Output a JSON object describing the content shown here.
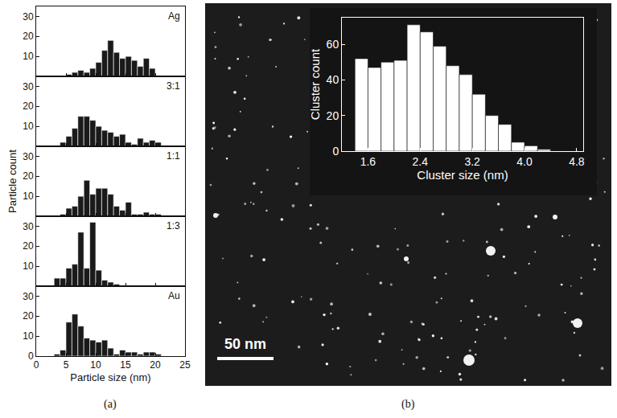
{
  "chart_data": [
    {
      "type": "histogram",
      "title": "Ag",
      "color": "#1a1a1a",
      "bins": [
        5,
        6,
        7,
        8,
        9,
        10,
        11,
        12,
        13,
        14,
        15,
        16,
        17,
        18,
        19,
        20
      ],
      "values": [
        1,
        2,
        3,
        2,
        4,
        7,
        13,
        18,
        12,
        9,
        10,
        8,
        5,
        9,
        4
      ],
      "xlim": [
        0,
        25
      ],
      "xticks": [
        0,
        5,
        10,
        15,
        20,
        25
      ],
      "ylim": [
        0,
        35
      ],
      "yticks": [
        10,
        20,
        30
      ],
      "grid": false,
      "tick_labels": "y"
    },
    {
      "type": "histogram",
      "title": "3:1",
      "color": "#1a1a1a",
      "bins": [
        4,
        5,
        6,
        7,
        8,
        9,
        10,
        11,
        12,
        13,
        14,
        15,
        16,
        17,
        18,
        19,
        20,
        21
      ],
      "values": [
        2,
        5,
        9,
        15,
        15,
        13,
        10,
        8,
        7,
        5,
        6,
        2,
        1,
        4,
        2,
        3,
        2
      ],
      "xlim": [
        0,
        25
      ],
      "xticks": [
        0,
        5,
        10,
        15,
        20,
        25
      ],
      "ylim": [
        0,
        35
      ],
      "yticks": [
        10,
        20,
        30
      ],
      "grid": false,
      "tick_labels": "y"
    },
    {
      "type": "histogram",
      "title": "1:1",
      "color": "#1a1a1a",
      "ylabel": "Particle count",
      "bins": [
        4,
        5,
        6,
        7,
        8,
        9,
        10,
        11,
        12,
        13,
        14,
        15,
        16,
        17,
        18,
        19,
        20,
        21
      ],
      "values": [
        1,
        4,
        5,
        10,
        18,
        11,
        14,
        14,
        11,
        5,
        3,
        7,
        1,
        1,
        2,
        1,
        1
      ],
      "xlim": [
        0,
        25
      ],
      "xticks": [
        0,
        5,
        10,
        15,
        20,
        25
      ],
      "ylim": [
        0,
        35
      ],
      "yticks": [
        10,
        20,
        30
      ],
      "grid": false,
      "tick_labels": "y"
    },
    {
      "type": "histogram",
      "title": "1:3",
      "color": "#1a1a1a",
      "bins": [
        3,
        4,
        5,
        6,
        7,
        8,
        9,
        10,
        11,
        12,
        13,
        14
      ],
      "values": [
        4,
        4,
        9,
        11,
        27,
        9,
        32,
        8,
        3,
        2,
        1
      ],
      "xlim": [
        0,
        25
      ],
      "xticks": [
        0,
        5,
        10,
        15,
        20,
        25
      ],
      "ylim": [
        0,
        35
      ],
      "yticks": [
        10,
        20,
        30
      ],
      "grid": false,
      "tick_labels": "y"
    },
    {
      "type": "histogram",
      "title": "Au",
      "color": "#1a1a1a",
      "xlabel": "Particle size (nm)",
      "bins": [
        3,
        4,
        5,
        6,
        7,
        8,
        9,
        10,
        11,
        12,
        13,
        14,
        15,
        16,
        17,
        18,
        19,
        20,
        21
      ],
      "values": [
        1,
        3,
        17,
        21,
        15,
        9,
        8,
        7,
        8,
        4,
        1,
        3,
        2,
        2,
        1,
        2,
        2,
        1
      ],
      "xlim": [
        0,
        25
      ],
      "xticks": [
        0,
        5,
        10,
        15,
        20,
        25
      ],
      "ylim": [
        0,
        35
      ],
      "yticks": [
        0,
        10,
        20,
        30
      ],
      "grid": false,
      "tick_labels": true
    },
    {
      "type": "histogram",
      "color": "#ffffff",
      "xlabel": "Cluster size (nm)",
      "ylabel": "Cluster count",
      "bins": [
        1.4,
        1.6,
        1.8,
        2.0,
        2.2,
        2.4,
        2.6,
        2.8,
        3.0,
        3.2,
        3.4,
        3.6,
        3.8,
        4.0,
        4.2,
        4.4
      ],
      "values": [
        52,
        47,
        50,
        51,
        71,
        67,
        59,
        48,
        43,
        32,
        20,
        15,
        5,
        3,
        1
      ],
      "xlim": [
        1.2,
        4.9
      ],
      "xticks": [
        1.6,
        2.4,
        3.2,
        {
          "value": 4,
          "label": "4.0"
        },
        4.8
      ],
      "ylim": [
        0,
        75
      ],
      "yticks": [
        0,
        20,
        40,
        60
      ],
      "grid": false,
      "tick_labels": true
    }
  ],
  "figure": {
    "panel_labels": [
      "(a)",
      "(b)"
    ],
    "scale_bar": "50 nm"
  }
}
